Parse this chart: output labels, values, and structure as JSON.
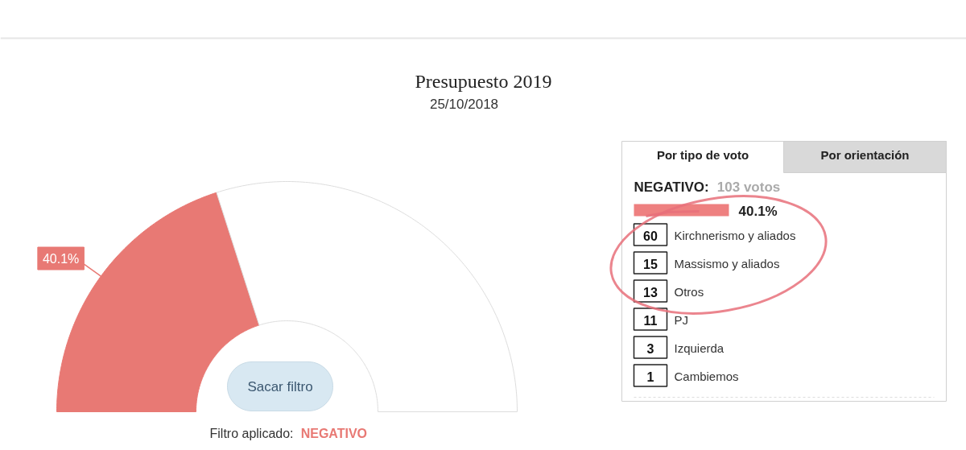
{
  "chart_data": [
    {
      "type": "donut",
      "title": "Presupuesto 2019",
      "subtitle": "25/10/2018",
      "categories": [
        null,
        null
      ],
      "values": [
        40.1,
        59.9
      ],
      "colors": [
        "#e87974",
        "#ffffff"
      ],
      "value_labels": [
        "40.1%",
        null
      ],
      "annotations": [
        "Sacar filtro",
        "Filtro aplicado:",
        "NEGATIVO"
      ]
    },
    {
      "type": "bar",
      "orientation": "horizontal",
      "title": "NEGATIVO:",
      "subtitle": "103 votos",
      "categories": [
        null
      ],
      "values": [
        40.1
      ],
      "color": "#ee8080",
      "value_labels": [
        "40.1%"
      ],
      "annotations": [
        "Por tipo de voto",
        "Por orientación"
      ]
    },
    {
      "type": "other",
      "categories": [
        "Kirchnerismo y aliados",
        "Massismo y aliados",
        "Otros",
        "PJ",
        "Izquierda",
        "Cambiemos"
      ],
      "values": [
        60,
        15,
        13,
        11,
        3,
        1
      ],
      "data_labels": true
    }
  ]
}
